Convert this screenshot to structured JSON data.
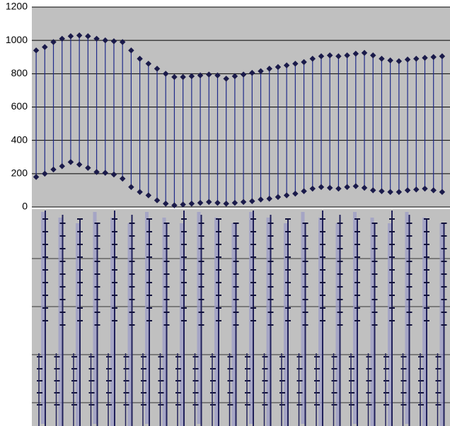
{
  "chart_data": {
    "type": "line",
    "categories": [
      null,
      null,
      null,
      null,
      null,
      null,
      null,
      null,
      null,
      null,
      null,
      null,
      null,
      null,
      null,
      null,
      null,
      null,
      null,
      null,
      null,
      null,
      null,
      null,
      null,
      null,
      null,
      null,
      null,
      null,
      null,
      null,
      null,
      null,
      null,
      null,
      null,
      null,
      null,
      null,
      null,
      null,
      null,
      null,
      null,
      null,
      null,
      null
    ],
    "series": [
      {
        "color": "#1a1a4a",
        "values": [
          940,
          960,
          990,
          1010,
          1025,
          1030,
          1025,
          1010,
          1000,
          995,
          990,
          940,
          890,
          860,
          830,
          800,
          780,
          780,
          785,
          790,
          795,
          790,
          770,
          785,
          795,
          805,
          815,
          830,
          840,
          850,
          860,
          870,
          890,
          905,
          910,
          905,
          910,
          920,
          925,
          910,
          890,
          880,
          875,
          885,
          890,
          895,
          900,
          905
        ]
      },
      {
        "color": "#1a1a4a",
        "values": [
          180,
          200,
          225,
          245,
          270,
          255,
          235,
          210,
          205,
          195,
          170,
          120,
          90,
          70,
          40,
          20,
          10,
          15,
          20,
          25,
          30,
          25,
          20,
          25,
          30,
          35,
          45,
          50,
          60,
          70,
          80,
          95,
          110,
          120,
          115,
          110,
          120,
          125,
          115,
          100,
          95,
          90,
          90,
          100,
          105,
          110,
          100,
          90
        ]
      }
    ],
    "connector_color": "#1f2a8a",
    "ylim": [
      0,
      1200
    ],
    "yticks": [
      0,
      200,
      400,
      600,
      800,
      1000,
      1200
    ],
    "grid": true
  }
}
